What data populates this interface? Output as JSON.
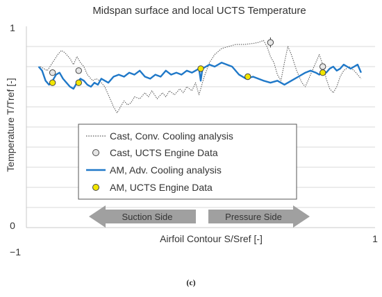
{
  "caption": "(c)",
  "chart_data": {
    "type": "line",
    "title": "Midspan surface and local UCTS Temperature",
    "xlabel": "Airfoil Contour S/Sref [-]",
    "ylabel": "Temperature T/Tref [-]",
    "xlim": [
      -1,
      1
    ],
    "ylim": [
      0,
      1
    ],
    "x_tick_labels": [
      "−1",
      "1"
    ],
    "y_tick_labels": [
      "0",
      "1"
    ],
    "grid": "horizontal",
    "y_grid_step": 0.1,
    "legend_position": "center",
    "arrows": [
      {
        "label": "Suction Side",
        "direction": "left",
        "x_range": [
          -0.64,
          -0.02
        ],
        "y": 0.06
      },
      {
        "label": "Pressure Side",
        "direction": "right",
        "x_range": [
          0.02,
          0.62
        ],
        "y": 0.06
      }
    ],
    "series": [
      {
        "name": "Cast, Conv. Cooling analysis",
        "style": "dotted",
        "color": "#555555",
        "x": [
          -0.92,
          -0.9,
          -0.88,
          -0.85,
          -0.82,
          -0.8,
          -0.78,
          -0.75,
          -0.73,
          -0.71,
          -0.69,
          -0.67,
          -0.65,
          -0.62,
          -0.6,
          -0.58,
          -0.55,
          -0.52,
          -0.5,
          -0.48,
          -0.46,
          -0.44,
          -0.42,
          -0.4,
          -0.38,
          -0.35,
          -0.32,
          -0.3,
          -0.28,
          -0.25,
          -0.22,
          -0.2,
          -0.18,
          -0.15,
          -0.12,
          -0.1,
          -0.08,
          -0.05,
          -0.03,
          -0.01,
          0.02,
          0.05,
          0.08,
          0.12,
          0.16,
          0.2,
          0.25,
          0.3,
          0.33,
          0.36,
          0.38,
          0.4,
          0.42,
          0.44,
          0.46,
          0.48,
          0.5,
          0.52,
          0.55,
          0.58,
          0.6,
          0.62,
          0.64,
          0.66,
          0.68,
          0.7,
          0.72,
          0.74,
          0.76,
          0.78,
          0.8,
          0.82,
          0.85,
          0.88,
          0.9,
          0.92
        ],
        "y": [
          0.8,
          0.79,
          0.78,
          0.82,
          0.86,
          0.88,
          0.87,
          0.84,
          0.81,
          0.85,
          0.82,
          0.8,
          0.76,
          0.73,
          0.74,
          0.73,
          0.7,
          0.64,
          0.6,
          0.57,
          0.6,
          0.63,
          0.61,
          0.62,
          0.65,
          0.64,
          0.67,
          0.65,
          0.68,
          0.64,
          0.67,
          0.65,
          0.68,
          0.66,
          0.69,
          0.67,
          0.7,
          0.68,
          0.72,
          0.66,
          0.75,
          0.82,
          0.86,
          0.89,
          0.9,
          0.91,
          0.91,
          0.915,
          0.92,
          0.93,
          0.9,
          0.85,
          0.82,
          0.76,
          0.73,
          0.82,
          0.9,
          0.86,
          0.78,
          0.72,
          0.7,
          0.74,
          0.78,
          0.82,
          0.86,
          0.81,
          0.74,
          0.69,
          0.67,
          0.7,
          0.75,
          0.78,
          0.8,
          0.78,
          0.76,
          0.74
        ]
      },
      {
        "name": "Cast, UCTS Engine Data",
        "style": "marker",
        "marker": "circle-gray",
        "x": [
          -0.85,
          -0.7,
          0.4,
          0.7
        ],
        "y": [
          0.77,
          0.78,
          0.92,
          0.8
        ],
        "errors": [
          0.015,
          0.015,
          0.025,
          0.015
        ]
      },
      {
        "name": "AM, Adv. Cooling analysis",
        "style": "solid",
        "color": "#1f78c8",
        "x": [
          -0.93,
          -0.91,
          -0.89,
          -0.87,
          -0.85,
          -0.83,
          -0.81,
          -0.79,
          -0.77,
          -0.75,
          -0.73,
          -0.71,
          -0.69,
          -0.67,
          -0.65,
          -0.63,
          -0.61,
          -0.59,
          -0.57,
          -0.55,
          -0.53,
          -0.5,
          -0.47,
          -0.44,
          -0.41,
          -0.38,
          -0.35,
          -0.32,
          -0.29,
          -0.26,
          -0.23,
          -0.2,
          -0.17,
          -0.14,
          -0.11,
          -0.08,
          -0.05,
          -0.03,
          -0.01,
          0.0,
          0.01,
          0.03,
          0.05,
          0.08,
          0.12,
          0.15,
          0.18,
          0.22,
          0.26,
          0.3,
          0.33,
          0.36,
          0.4,
          0.44,
          0.48,
          0.52,
          0.56,
          0.6,
          0.63,
          0.66,
          0.68,
          0.7,
          0.72,
          0.74,
          0.76,
          0.78,
          0.8,
          0.82,
          0.84,
          0.86,
          0.88,
          0.9,
          0.92
        ],
        "y": [
          0.8,
          0.78,
          0.73,
          0.71,
          0.73,
          0.76,
          0.77,
          0.74,
          0.72,
          0.7,
          0.69,
          0.72,
          0.74,
          0.73,
          0.71,
          0.7,
          0.72,
          0.71,
          0.74,
          0.73,
          0.72,
          0.75,
          0.76,
          0.75,
          0.77,
          0.76,
          0.78,
          0.75,
          0.74,
          0.76,
          0.75,
          0.78,
          0.76,
          0.77,
          0.76,
          0.78,
          0.77,
          0.78,
          0.79,
          0.73,
          0.79,
          0.8,
          0.81,
          0.8,
          0.82,
          0.81,
          0.8,
          0.76,
          0.74,
          0.75,
          0.74,
          0.73,
          0.72,
          0.73,
          0.71,
          0.73,
          0.75,
          0.77,
          0.78,
          0.77,
          0.76,
          0.78,
          0.77,
          0.79,
          0.8,
          0.78,
          0.79,
          0.81,
          0.8,
          0.79,
          0.8,
          0.81,
          0.77
        ]
      },
      {
        "name": "AM, UCTS Engine Data",
        "style": "marker",
        "marker": "circle-yellow",
        "x": [
          -0.85,
          -0.7,
          0.0,
          0.27,
          0.7
        ],
        "y": [
          0.72,
          0.72,
          0.79,
          0.75,
          0.77
        ],
        "errors": [
          0.012,
          0.012,
          0.015,
          0.012,
          0.012
        ]
      }
    ]
  }
}
